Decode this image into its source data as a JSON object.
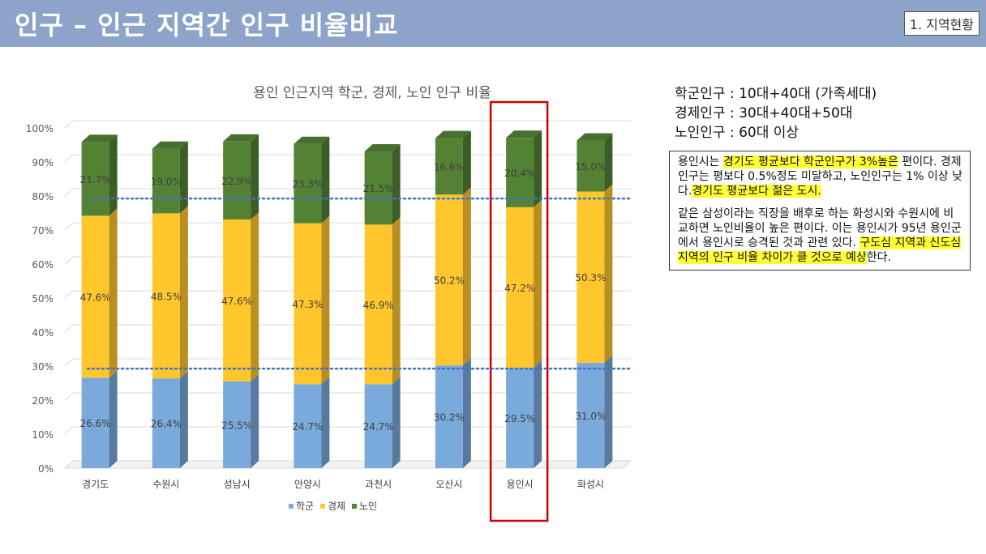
{
  "header": {
    "title": "인구 – 인근 지역간 인구 비율비교",
    "badge": "1. 지역현황"
  },
  "definitions": [
    "학군인구 : 10대+40대 (가족세대)",
    "경제인구 : 30대+40대+50대",
    "노인인구 : 60대 이상"
  ],
  "note": {
    "p1": [
      {
        "text": "용인시는 ",
        "hl": false
      },
      {
        "text": "경기도 평균보다 학군인구가 3%높은",
        "hl": true
      },
      {
        "text": " 편이다. 경제인구는 평보다 0.5%정도 미달하고, 노인인구는 1% 이상 낮다.",
        "hl": false
      },
      {
        "text": "경기도 평균보다 젊은 도시.",
        "hl": true
      }
    ],
    "p2": [
      {
        "text": " 같은 삼성이라는 직장을 배후로 하는 화성시와 수원시에 비교하면 노인비율이 높은 편이다. 이는 용인시가 95년 용인군에서 용인시로 승격된 것과 관련 있다. ",
        "hl": false
      },
      {
        "text": "구도심 지역과 신도심 지역의 인구 비율 차이가 클 것으로 예상",
        "hl": true
      },
      {
        "text": "한다.",
        "hl": false
      }
    ]
  },
  "colors": {
    "school": "#7aaadc",
    "economy": "#ffc72c",
    "senior": "#548235",
    "highlight_box": "#cc0000",
    "reference_line": "#4472c4"
  },
  "chart_data": {
    "type": "bar",
    "stacked": true,
    "three_d": true,
    "title": "용인 인근지역 학군, 경제, 노인 인구 비율",
    "categories": [
      "경기도",
      "수원시",
      "성남시",
      "안양시",
      "과천시",
      "오산시",
      "용인시",
      "화성시"
    ],
    "series": [
      {
        "name": "학군",
        "values": [
          26.6,
          26.4,
          25.5,
          24.7,
          24.7,
          30.2,
          29.5,
          31.0
        ],
        "labels": [
          "26.6%",
          "26.4%",
          "25.5%",
          "24.7%",
          "24.7%",
          "30.2%",
          "29.5%",
          "31.0%"
        ]
      },
      {
        "name": "경제",
        "values": [
          47.6,
          48.5,
          47.6,
          47.3,
          46.9,
          50.2,
          47.2,
          50.3
        ],
        "labels": [
          "47.6%",
          "48.5%",
          "47.6%",
          "47.3%",
          "46.9%",
          "50.2%",
          "47.2%",
          "50.3%"
        ]
      },
      {
        "name": "노인",
        "values": [
          21.7,
          19.0,
          22.9,
          23.3,
          21.5,
          16.6,
          20.4,
          15.0
        ],
        "labels": [
          "21.7%",
          "19.0%",
          "22.9%",
          "23.3%",
          "21.5%",
          "16.6%",
          "20.4%",
          "15.0%"
        ]
      }
    ],
    "yticks": [
      "0%",
      "10%",
      "20%",
      "30%",
      "40%",
      "50%",
      "60%",
      "70%",
      "80%",
      "90%",
      "100%"
    ],
    "ylim": [
      0,
      100
    ],
    "reference_lines": [
      27.6,
      77.6
    ],
    "highlighted_category": "용인시",
    "legend_position": "bottom",
    "grid": true
  }
}
